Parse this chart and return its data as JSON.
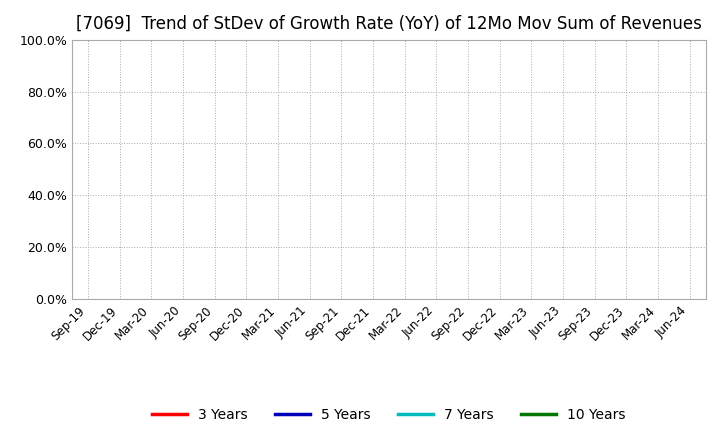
{
  "title": "[7069]  Trend of StDev of Growth Rate (YoY) of 12Mo Mov Sum of Revenues",
  "title_fontsize": 12,
  "title_fontweight": "normal",
  "ylim": [
    0.0,
    1.0
  ],
  "yticks": [
    0.0,
    0.2,
    0.4,
    0.6,
    0.8,
    1.0
  ],
  "ytick_labels": [
    "0.0%",
    "20.0%",
    "40.0%",
    "60.0%",
    "80.0%",
    "100.0%"
  ],
  "x_labels": [
    "Sep-19",
    "Dec-19",
    "Mar-20",
    "Jun-20",
    "Sep-20",
    "Dec-20",
    "Mar-21",
    "Jun-21",
    "Sep-21",
    "Dec-21",
    "Mar-22",
    "Jun-22",
    "Sep-22",
    "Dec-22",
    "Mar-23",
    "Jun-23",
    "Sep-23",
    "Dec-23",
    "Mar-24",
    "Jun-24"
  ],
  "legend_entries": [
    "3 Years",
    "5 Years",
    "7 Years",
    "10 Years"
  ],
  "legend_colors": [
    "#ff0000",
    "#0000bb",
    "#00bbbb",
    "#007700"
  ],
  "background_color": "#ffffff",
  "plot_bg_color": "#ffffff",
  "grid_color": "#aaaaaa",
  "spine_color": "#aaaaaa",
  "tick_label_fontsize": 9,
  "xtick_label_fontsize": 8.5
}
